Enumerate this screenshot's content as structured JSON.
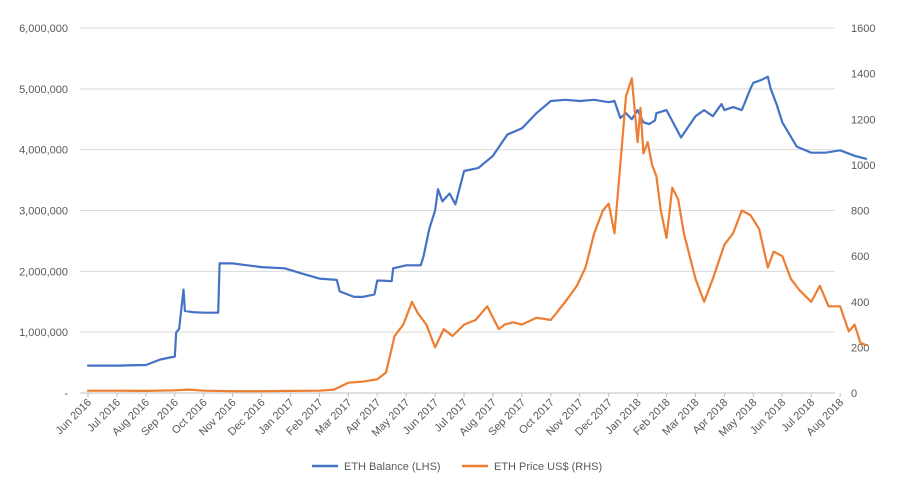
{
  "chart_data": {
    "type": "line",
    "title": "",
    "xlabel": "",
    "ylabel_left": "",
    "ylabel_right": "",
    "ylim_left": [
      0,
      6000000
    ],
    "ylim_right": [
      0,
      1600
    ],
    "left_tick_labels": [
      "-",
      "1,000,000",
      "2,000,000",
      "3,000,000",
      "4,000,000",
      "5,000,000",
      "6,000,000"
    ],
    "right_tick_labels": [
      "0",
      "200",
      "400",
      "600",
      "800",
      "1000",
      "1200",
      "1400",
      "1600"
    ],
    "x_tick_labels": [
      "Jun 2016",
      "Jul 2016",
      "Aug 2016",
      "Sep 2016",
      "Oct 2016",
      "Nov 2016",
      "Dec 2016",
      "Jan 2017",
      "Feb 2017",
      "Mar 2017",
      "Apr 2017",
      "May 2017",
      "Jun 2017",
      "Jul 2017",
      "Aug 2017",
      "Sep 2017",
      "Oct 2017",
      "Nov 2017",
      "Dec 2017",
      "Jan 2018",
      "Feb 2018",
      "Mar 2018",
      "Apr 2018",
      "May 2018",
      "Jun 2018",
      "Jul 2018",
      "Aug 2018"
    ],
    "grid": true,
    "legend_position": "bottom",
    "series": [
      {
        "name": "ETH Balance (LHS)",
        "axis": "left",
        "color": "#4472C4",
        "x": [
          0,
          1.0,
          2.0,
          2.5,
          3.0,
          3.05,
          3.15,
          3.3,
          3.35,
          3.6,
          4.0,
          4.5,
          4.55,
          5.0,
          5.5,
          6.0,
          6.8,
          7.5,
          8.0,
          8.6,
          8.7,
          9.2,
          9.5,
          9.9,
          10.0,
          10.5,
          10.55,
          11.0,
          11.5,
          11.6,
          11.8,
          12.0,
          12.1,
          12.25,
          12.5,
          12.7,
          13.0,
          13.5,
          14.0,
          14.5,
          15.0,
          15.5,
          16.0,
          16.5,
          17.0,
          17.5,
          18.0,
          18.2,
          18.4,
          18.6,
          18.8,
          19.0,
          19.2,
          19.4,
          19.6,
          19.65,
          20.0,
          20.5,
          21.0,
          21.3,
          21.6,
          21.9,
          22.0,
          22.3,
          22.6,
          22.9,
          23.0,
          23.3,
          23.5,
          23.6,
          23.8,
          24.0,
          24.5,
          25.0,
          25.5,
          26.0,
          26.5,
          26.9
        ],
        "y": [
          450000,
          450000,
          460000,
          550000,
          600000,
          1000000,
          1050000,
          1700000,
          1350000,
          1330000,
          1320000,
          1320000,
          2130000,
          2130000,
          2100000,
          2070000,
          2050000,
          1950000,
          1880000,
          1860000,
          1670000,
          1580000,
          1580000,
          1620000,
          1850000,
          1840000,
          2050000,
          2100000,
          2100000,
          2250000,
          2700000,
          3000000,
          3350000,
          3150000,
          3280000,
          3100000,
          3650000,
          3700000,
          3900000,
          4250000,
          4350000,
          4600000,
          4800000,
          4820000,
          4800000,
          4820000,
          4780000,
          4800000,
          4520000,
          4600000,
          4500000,
          4650000,
          4450000,
          4420000,
          4480000,
          4600000,
          4650000,
          4200000,
          4550000,
          4650000,
          4550000,
          4750000,
          4650000,
          4700000,
          4650000,
          5000000,
          5100000,
          5150000,
          5200000,
          5000000,
          4750000,
          4450000,
          4050000,
          3950000,
          3950000,
          3990000,
          3900000,
          3850000
        ]
      },
      {
        "name": "ETH Price US$ (RHS)",
        "axis": "right",
        "color": "#ED7D31",
        "x": [
          0,
          1.0,
          2.0,
          3.0,
          3.5,
          4.0,
          5.0,
          6.0,
          7.0,
          8.0,
          8.5,
          9.0,
          9.5,
          10.0,
          10.3,
          10.6,
          10.9,
          11.2,
          11.4,
          11.7,
          12.0,
          12.3,
          12.6,
          13.0,
          13.4,
          13.8,
          14.0,
          14.2,
          14.4,
          14.7,
          15.0,
          15.5,
          16.0,
          16.5,
          16.9,
          17.2,
          17.5,
          17.8,
          18.0,
          18.2,
          18.4,
          18.6,
          18.8,
          19.0,
          19.1,
          19.2,
          19.35,
          19.5,
          19.65,
          19.8,
          20.0,
          20.2,
          20.4,
          20.6,
          20.8,
          21.0,
          21.3,
          21.6,
          22.0,
          22.3,
          22.6,
          22.9,
          23.2,
          23.5,
          23.7,
          24.0,
          24.3,
          24.6,
          25.0,
          25.3,
          25.6,
          26.0,
          26.3,
          26.5,
          26.7,
          26.9
        ],
        "y": [
          10,
          10,
          9,
          12,
          15,
          10,
          8,
          8,
          9,
          10,
          15,
          45,
          50,
          60,
          90,
          250,
          300,
          400,
          350,
          300,
          200,
          280,
          250,
          300,
          320,
          380,
          330,
          280,
          300,
          310,
          300,
          330,
          320,
          400,
          470,
          550,
          700,
          800,
          830,
          700,
          1000,
          1300,
          1380,
          1100,
          1250,
          1050,
          1100,
          1000,
          950,
          800,
          680,
          900,
          850,
          700,
          600,
          500,
          400,
          500,
          650,
          700,
          800,
          780,
          720,
          550,
          620,
          600,
          500,
          450,
          400,
          470,
          380,
          380,
          270,
          300,
          220,
          210
        ]
      }
    ]
  }
}
